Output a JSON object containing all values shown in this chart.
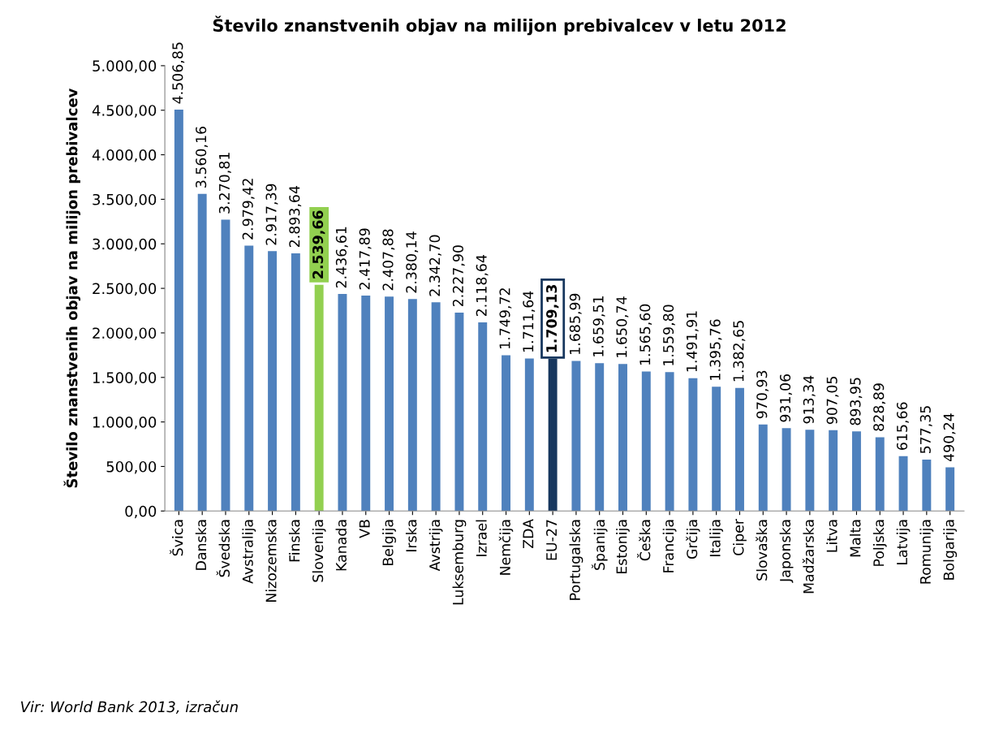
{
  "chart_data": {
    "type": "bar",
    "title": "Število znanstvenih objav na milijon prebivalcev v letu 2012",
    "ylabel": "Število znanstvenih objav na milijon prebivalcev",
    "categories": [
      "Švica",
      "Danska",
      "Švedska",
      "Avstralija",
      "Nizozemska",
      "Finska",
      "Slovenija",
      "Kanada",
      "VB",
      "Belgija",
      "Irska",
      "Avstrija",
      "Luksemburg",
      "Izrael",
      "Nemčija",
      "ZDA",
      "EU-27",
      "Portugalska",
      "Španija",
      "Estonija",
      "Češka",
      "Francija",
      "Grčija",
      "Italija",
      "Ciper",
      "Slovaška",
      "Japonska",
      "Madžarska",
      "Litva",
      "Malta",
      "Poljska",
      "Latvija",
      "Romunija",
      "Bolgarija"
    ],
    "values": [
      4506.85,
      3560.16,
      3270.81,
      2979.42,
      2917.39,
      2893.64,
      2539.66,
      2436.61,
      2417.89,
      2407.88,
      2380.14,
      2342.7,
      2227.9,
      2118.64,
      1749.72,
      1711.64,
      1709.13,
      1685.99,
      1659.51,
      1650.74,
      1565.6,
      1559.8,
      1491.91,
      1395.76,
      1382.65,
      970.93,
      931.06,
      913.34,
      907.05,
      893.95,
      828.89,
      615.66,
      577.35,
      490.24
    ],
    "value_labels": [
      "4.506,85",
      "3.560,16",
      "3.270,81",
      "2.979,42",
      "2.917,39",
      "2.893,64",
      "2.539,66",
      "2.436,61",
      "2.417,89",
      "2.407,88",
      "2.380,14",
      "2.342,70",
      "2.227,90",
      "2.118,64",
      "1.749,72",
      "1.711,64",
      "1.709,13",
      "1.685,99",
      "1.659,51",
      "1.650,74",
      "1.565,60",
      "1.559,80",
      "1.491,91",
      "1.395,76",
      "1.382,65",
      "970,93",
      "931,06",
      "913,34",
      "907,05",
      "893,95",
      "828,89",
      "615,66",
      "577,35",
      "490,24"
    ],
    "color": "#4f81bd",
    "colors": [
      "#4f81bd",
      "#4f81bd",
      "#4f81bd",
      "#4f81bd",
      "#4f81bd",
      "#4f81bd",
      "#92d050",
      "#4f81bd",
      "#4f81bd",
      "#4f81bd",
      "#4f81bd",
      "#4f81bd",
      "#4f81bd",
      "#4f81bd",
      "#4f81bd",
      "#4f81bd",
      "#17375e",
      "#4f81bd",
      "#4f81bd",
      "#4f81bd",
      "#4f81bd",
      "#4f81bd",
      "#4f81bd",
      "#4f81bd",
      "#4f81bd",
      "#4f81bd",
      "#4f81bd",
      "#4f81bd",
      "#4f81bd",
      "#4f81bd",
      "#4f81bd",
      "#4f81bd",
      "#4f81bd",
      "#4f81bd"
    ],
    "ylim": [
      0,
      5000
    ],
    "yticks": [
      {
        "value": 0,
        "label": "0,00"
      },
      {
        "value": 500,
        "label": "500,00"
      },
      {
        "value": 1000,
        "label": "1.000,00"
      },
      {
        "value": 1500,
        "label": "1.500,00"
      },
      {
        "value": 2000,
        "label": "2.000,00"
      },
      {
        "value": 2500,
        "label": "2.500,00"
      },
      {
        "value": 3000,
        "label": "3.000,00"
      },
      {
        "value": 3500,
        "label": "3.500,00"
      },
      {
        "value": 4000,
        "label": "4.000,00"
      },
      {
        "value": 4500,
        "label": "4.500,00"
      },
      {
        "value": 5000,
        "label": "5.000,00"
      }
    ],
    "grid": false,
    "legend": false,
    "annotations": [
      "Vir: World Bank 2013, izračun"
    ]
  }
}
